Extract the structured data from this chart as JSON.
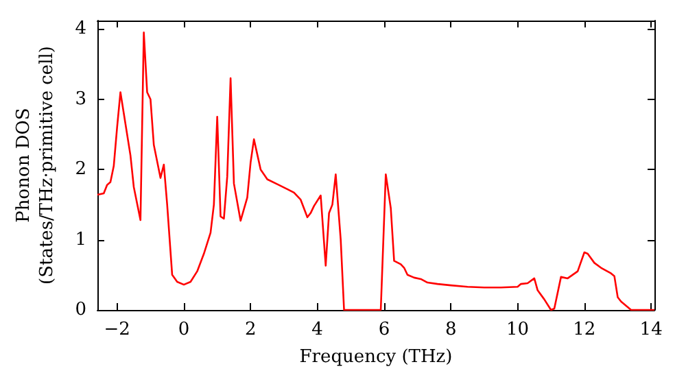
{
  "chart_data": {
    "type": "line",
    "xlabel": "Frequency (THz)",
    "ylabel": "Phonon DOS\n(States/THz·primitive cell)",
    "x": [
      -2.59,
      -2.4,
      -2.3,
      -2.2,
      -2.1,
      -2.0,
      -1.9,
      -1.8,
      -1.6,
      -1.5,
      -1.3,
      -1.2,
      -1.1,
      -1.0,
      -0.9,
      -0.7,
      -0.6,
      -0.5,
      -0.35,
      -0.2,
      0.0,
      0.2,
      0.4,
      0.6,
      0.8,
      0.9,
      1.0,
      1.1,
      1.2,
      1.3,
      1.4,
      1.5,
      1.7,
      1.9,
      2.0,
      2.1,
      2.3,
      2.5,
      2.8,
      3.1,
      3.3,
      3.5,
      3.7,
      3.8,
      3.9,
      4.1,
      4.25,
      4.35,
      4.45,
      4.55,
      4.7,
      4.8,
      5.9,
      6.05,
      6.2,
      6.3,
      6.5,
      6.6,
      6.7,
      6.9,
      7.1,
      7.3,
      7.6,
      8.0,
      8.5,
      9.0,
      9.5,
      10.0,
      10.1,
      10.3,
      10.5,
      10.6,
      10.8,
      11.0,
      11.1,
      11.3,
      11.5,
      11.8,
      12.0,
      12.1,
      12.3,
      12.5,
      12.8,
      12.9,
      13.0,
      13.1,
      13.4,
      14.1
    ],
    "series": [
      {
        "color": "#ff0000",
        "values": [
          1.64,
          1.66,
          1.78,
          1.82,
          2.05,
          2.6,
          3.1,
          2.8,
          2.2,
          1.75,
          1.28,
          3.95,
          3.1,
          3.0,
          2.35,
          1.88,
          2.07,
          1.5,
          0.5,
          0.4,
          0.36,
          0.4,
          0.55,
          0.8,
          1.1,
          1.5,
          2.75,
          1.33,
          1.3,
          1.9,
          3.3,
          1.8,
          1.27,
          1.6,
          2.1,
          2.43,
          2.0,
          1.86,
          1.79,
          1.72,
          1.67,
          1.57,
          1.32,
          1.38,
          1.48,
          1.63,
          0.63,
          1.38,
          1.5,
          1.93,
          1.0,
          0,
          0,
          1.93,
          1.45,
          0.7,
          0.65,
          0.6,
          0.5,
          0.46,
          0.44,
          0.39,
          0.37,
          0.35,
          0.33,
          0.32,
          0.32,
          0.33,
          0.37,
          0.38,
          0.45,
          0.28,
          0.15,
          0,
          0.02,
          0.47,
          0.45,
          0.55,
          0.82,
          0.8,
          0.67,
          0.6,
          0.52,
          0.48,
          0.18,
          0.12,
          0,
          0
        ]
      }
    ],
    "xlim": [
      -2.59,
      14.1
    ],
    "ylim": [
      0,
      4.12
    ],
    "xticks": [
      {
        "value": -2,
        "label": "−2"
      },
      0,
      2,
      4,
      6,
      8,
      10,
      12,
      14
    ],
    "yticks": [
      0,
      1,
      2,
      3,
      4
    ],
    "marker": "none",
    "line_style": "solid"
  }
}
